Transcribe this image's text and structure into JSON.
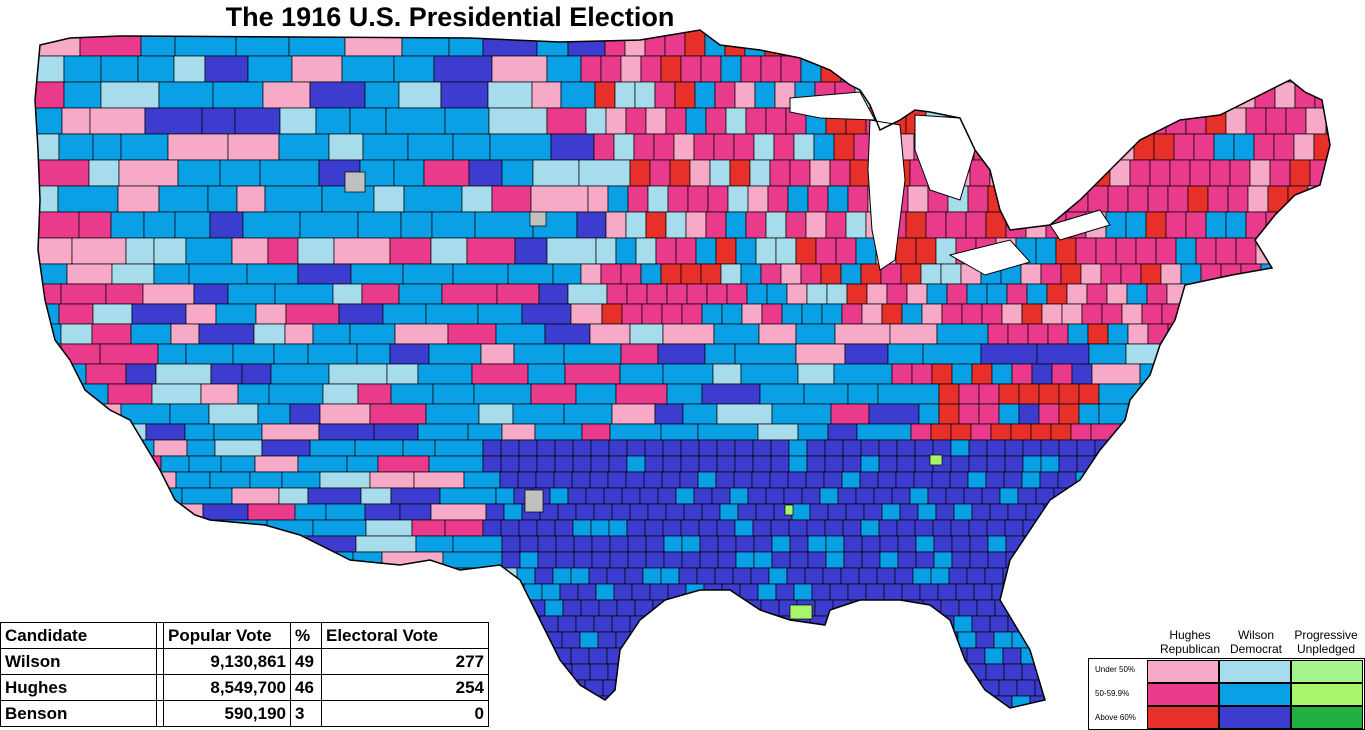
{
  "title": "The 1916 U.S. Presidential Election",
  "colors": {
    "rep_under50": "#f7a9c8",
    "rep_50_60": "#e93a8c",
    "rep_above60": "#e8302a",
    "dem_under50": "#a6dcec",
    "dem_50_60": "#0aa0e6",
    "dem_above60": "#3c3ccf",
    "prog_under50": "#a6f58c",
    "prog_50_60": "#a6f56a",
    "prog_above60": "#20b040",
    "no_data": "#c0c0c0",
    "border": "#000000"
  },
  "results": {
    "headers": {
      "candidate": "Candidate",
      "popular_vote": "Popular Vote",
      "percent": "%",
      "electoral_vote": "Electoral Vote"
    },
    "rows": [
      {
        "candidate": "Wilson",
        "popular_vote": "9,130,861",
        "percent": "49",
        "electoral_vote": "277"
      },
      {
        "candidate": "Hughes",
        "popular_vote": "8,549,700",
        "percent": "46",
        "electoral_vote": "254"
      },
      {
        "candidate": "Benson",
        "popular_vote": "590,190",
        "percent": "3",
        "electoral_vote": "0"
      }
    ]
  },
  "legend": {
    "columns": [
      {
        "line1": "Hughes",
        "line2": "Republican"
      },
      {
        "line1": "Wilson",
        "line2": "Democrat"
      },
      {
        "line1": "Progressive",
        "line2": "Unpledged"
      }
    ],
    "rows": [
      "Under 50%",
      "50-59.9%",
      "Above 60%"
    ]
  }
}
